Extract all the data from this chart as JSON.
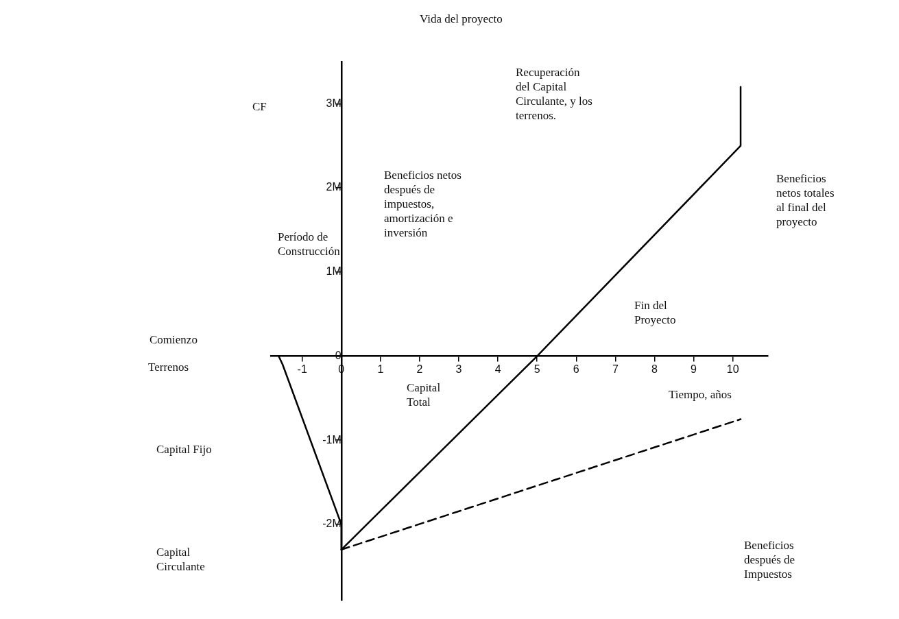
{
  "chart_data": {
    "type": "line",
    "xlabel": "Tiempo, años",
    "ylabel": "CF",
    "series": [
      {
        "color": "#000000",
        "x": [
          -1.6,
          -1.5,
          0,
          0,
          5,
          10.2,
          10.2
        ],
        "values": [
          0,
          -0.1,
          -2.0,
          -2.3,
          0,
          2.5,
          3.2
        ]
      },
      {
        "color": "#000000",
        "line_style": "dashed",
        "x": [
          0,
          10.2
        ],
        "values": [
          -2.3,
          -0.75
        ]
      }
    ],
    "xlim": [
      -1.8,
      10.9
    ],
    "xticks": [
      -1,
      0,
      1,
      2,
      3,
      4,
      5,
      6,
      7,
      8,
      9,
      10
    ],
    "ylim": [
      -2.9,
      3.5
    ],
    "yticks": [
      {
        "value": 3,
        "label": "3M"
      },
      {
        "value": 2,
        "label": "2M"
      },
      {
        "value": 1,
        "label": "1M"
      },
      0,
      {
        "value": -1,
        "label": "-1M"
      },
      {
        "value": -2,
        "label": "-2M"
      }
    ],
    "grid": false,
    "legend": false,
    "marker": "none",
    "line_style": "solid",
    "annotations": [
      "Vida del proyecto",
      "Recuperación\ndel Capital\nCirculante, y los\nterrenos.",
      "Beneficios netos\ndespués de\nimpuestos,\namortización e\ninversión",
      "Beneficios\nnetos totales\nal final del\nproyecto",
      "Período de\nConstrucción",
      "Comienzo",
      "Terrenos",
      "Capital Fijo",
      "Capital\nCirculante",
      "Capital\nTotal",
      "Fin del\nProyecto",
      "Beneficios\ndespués de\nImpuestos"
    ]
  }
}
